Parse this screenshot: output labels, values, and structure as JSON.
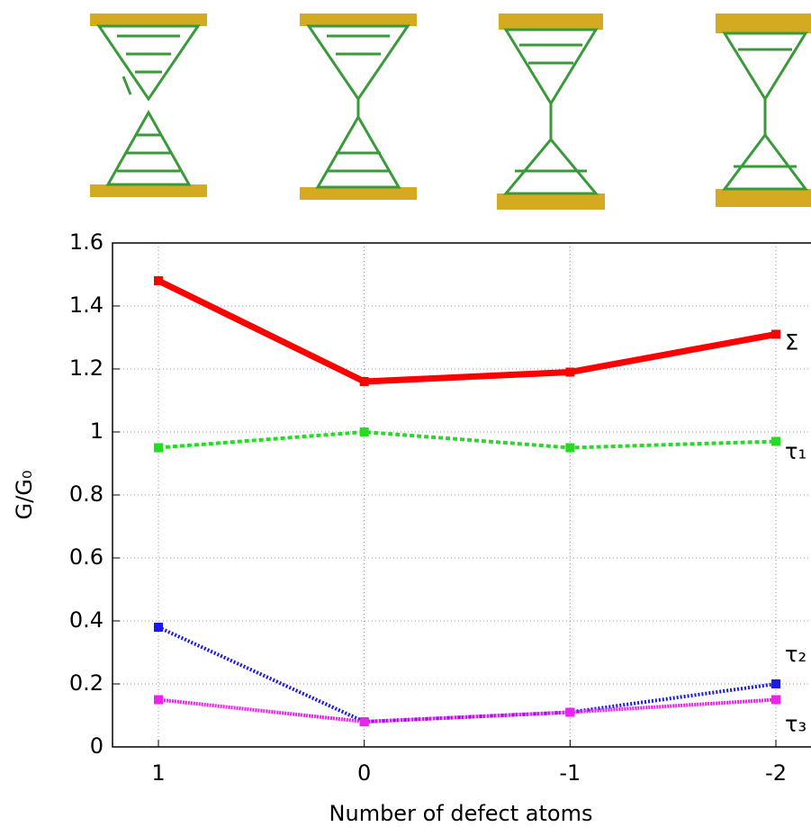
{
  "chart_data": {
    "type": "line",
    "categories": [
      "1",
      "0",
      "-1",
      "-2"
    ],
    "x_label": "Number of defect atoms",
    "y_label": "G/G₀",
    "ylim": [
      0,
      1.6
    ],
    "yticks": [
      0,
      0.2,
      0.4,
      0.6,
      0.8,
      1,
      1.2,
      1.4,
      1.6
    ],
    "grid": true,
    "series": [
      {
        "name": "Σ",
        "color": "#ff0000",
        "values": [
          1.48,
          1.16,
          1.19,
          1.31
        ]
      },
      {
        "name": "τ₁",
        "color": "#22dd22",
        "values": [
          0.95,
          1.0,
          0.95,
          0.97
        ]
      },
      {
        "name": "τ₂",
        "color": "#1a1aee",
        "values": [
          0.38,
          0.08,
          0.11,
          0.2
        ]
      },
      {
        "name": "τ₃",
        "color": "#ee22ee",
        "values": [
          0.15,
          0.08,
          0.11,
          0.15
        ]
      }
    ]
  }
}
